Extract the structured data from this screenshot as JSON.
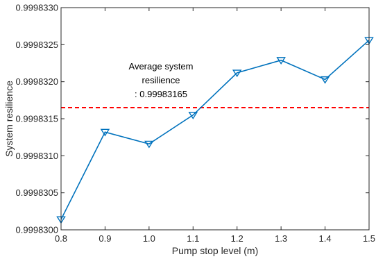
{
  "chart_data": {
    "type": "line",
    "xlabel": "Pump stop level (m)",
    "ylabel": "System resilience",
    "xlim": [
      0.8,
      1.5
    ],
    "ylim": [
      0.99983,
      0.999833
    ],
    "x": [
      0.8,
      0.9,
      1.0,
      1.1,
      1.2,
      1.3,
      1.4,
      1.5
    ],
    "x_tick_labels": [
      "0.8",
      "0.9",
      "1.0",
      "1.1",
      "1.2",
      "1.3",
      "1.4",
      "1.5"
    ],
    "y_ticks": [
      0.99983,
      0.9998305,
      0.999831,
      0.9998315,
      0.999832,
      0.9998325,
      0.999833
    ],
    "y_tick_labels": [
      "0.9998300",
      "0.9998305",
      "0.9998310",
      "0.9998315",
      "0.9998320",
      "0.9998325",
      "0.9998330"
    ],
    "series": [
      {
        "values": [
          0.99983014,
          0.99983132,
          0.99983116,
          0.99983155,
          0.99983212,
          0.99983229,
          0.99983203,
          0.99983256
        ],
        "color": "#0072BD",
        "marker": "down-triangle"
      }
    ],
    "reference_line": {
      "value": 0.99983165,
      "color": "#FF0000",
      "style": "dashed"
    },
    "annotation": {
      "lines": [
        "Average system",
        "resilience",
        ": 0.99983165"
      ]
    },
    "grid": false,
    "legend": "none"
  }
}
